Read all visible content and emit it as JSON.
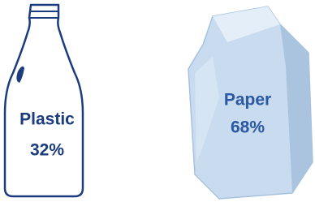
{
  "chart_data": {
    "type": "pictograph",
    "categories": [
      "Plastic",
      "Paper"
    ],
    "values": [
      32,
      68
    ],
    "value_labels": [
      "32%",
      "68%"
    ],
    "colors": [
      "#1b3c7e",
      "#2a58a3"
    ]
  }
}
